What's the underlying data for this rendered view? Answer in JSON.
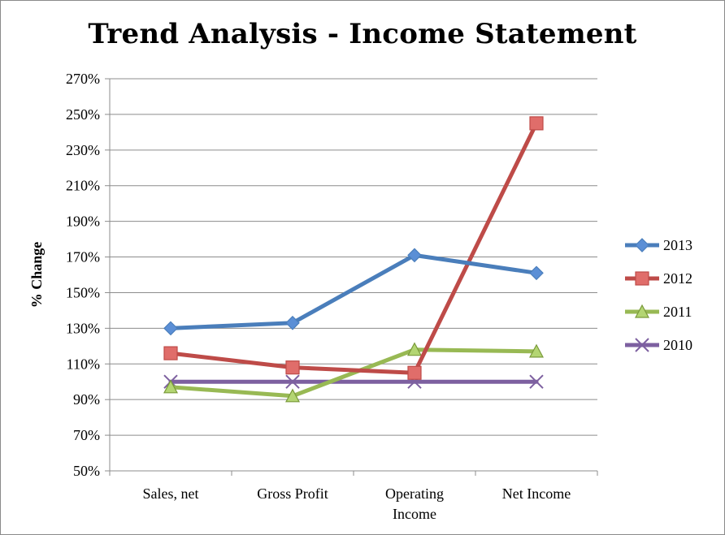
{
  "chart_data": {
    "type": "line",
    "title": "Trend Analysis - Income Statement",
    "xlabel": "",
    "ylabel": "% Change",
    "categories": [
      "Sales, net",
      "Gross Profit",
      "Operating Income",
      "Net Income"
    ],
    "category_lines": [
      [
        "Sales, net"
      ],
      [
        "Gross Profit"
      ],
      [
        "Operating",
        "Income"
      ],
      [
        "Net Income"
      ]
    ],
    "ylim": [
      50,
      270
    ],
    "yticks": [
      50,
      70,
      90,
      110,
      130,
      150,
      170,
      190,
      210,
      230,
      250,
      270
    ],
    "ytick_labels": [
      "50%",
      "70%",
      "90%",
      "110%",
      "130%",
      "150%",
      "170%",
      "190%",
      "210%",
      "230%",
      "250%",
      "270%"
    ],
    "grid": true,
    "legend_position": "right",
    "series": [
      {
        "name": "2013",
        "values": [
          130,
          133,
          171,
          161
        ],
        "color": "#4a7ebb",
        "marker": "diamond",
        "marker_fill": "#5b8fd6"
      },
      {
        "name": "2012",
        "values": [
          116,
          108,
          105,
          245
        ],
        "color": "#be4b48",
        "marker": "square",
        "marker_fill": "#e06d6a"
      },
      {
        "name": "2011",
        "values": [
          97,
          92,
          118,
          117
        ],
        "color": "#98b954",
        "marker": "triangle",
        "marker_fill": "#b3d572"
      },
      {
        "name": "2010",
        "values": [
          100,
          100,
          100,
          100
        ],
        "color": "#7d60a0",
        "marker": "x",
        "marker_fill": "#7d60a0"
      }
    ]
  }
}
